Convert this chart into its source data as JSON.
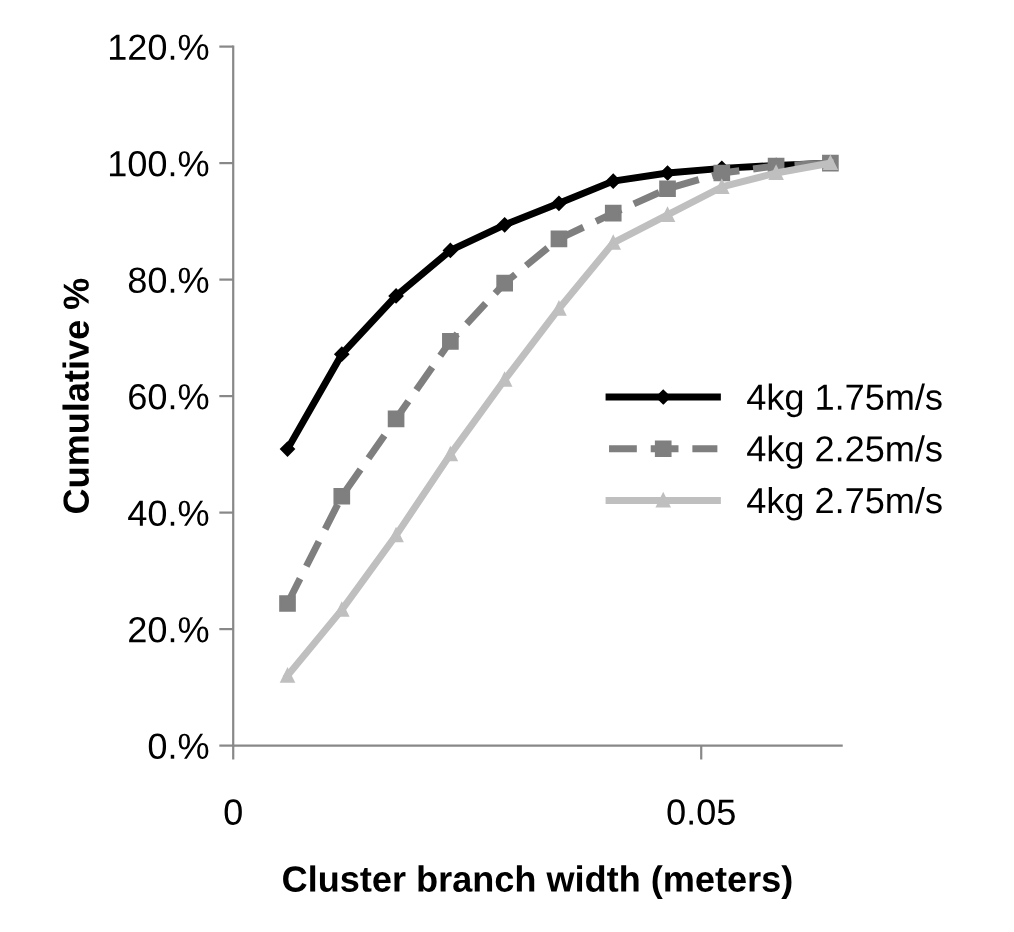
{
  "chart_data": {
    "type": "line",
    "xlabel": "Cluster branch width (meters)",
    "ylabel": "Cumulative %",
    "x": [
      0.0058,
      0.0116,
      0.0174,
      0.0232,
      0.029,
      0.0348,
      0.0406,
      0.0464,
      0.0522,
      0.058,
      0.0638
    ],
    "series": [
      {
        "name": "4kg 1.75m/s",
        "color": "#000000",
        "marker": "diamond",
        "line_style": "solid",
        "values": [
          50.9,
          67.2,
          77.2,
          85,
          89.4,
          93.1,
          96.9,
          98.3,
          99.1,
          99.6,
          100
        ]
      },
      {
        "name": "4kg 2.25m/s",
        "color": "#7f7f7f",
        "marker": "square",
        "line_style": "dashed",
        "values": [
          24.4,
          42.8,
          56.1,
          69.4,
          79.4,
          87,
          91.4,
          95.6,
          98.3,
          99.5,
          100
        ]
      },
      {
        "name": "4kg 2.75m/s",
        "color": "#bfbfbf",
        "marker": "triangle",
        "line_style": "solid",
        "values": [
          12,
          23.3,
          36.1,
          50,
          62.8,
          75,
          86.3,
          91.1,
          95.9,
          98.3,
          100
        ]
      }
    ],
    "xlim": [
      0,
      0.065
    ],
    "xticks": [
      0,
      0.05
    ],
    "ylim": [
      0,
      120
    ],
    "yticks": [
      {
        "value": 0,
        "label": "0.%"
      },
      {
        "value": 20,
        "label": "20.%"
      },
      {
        "value": 40,
        "label": "40.%"
      },
      {
        "value": 60,
        "label": "60.%"
      },
      {
        "value": 80,
        "label": "80.%"
      },
      {
        "value": 100,
        "label": "100.%"
      },
      {
        "value": 120,
        "label": "120.%"
      }
    ],
    "grid": false,
    "legend": "right"
  }
}
